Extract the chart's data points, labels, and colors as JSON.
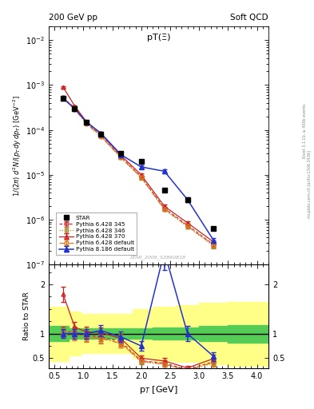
{
  "title_left": "200 GeV pp",
  "title_right": "Soft QCD",
  "plot_label": "pT(Ξ)",
  "watermark": "STAR_2006_S3860818",
  "ylabel_ratio": "Ratio to STAR",
  "xlabel": "p_T [GeV]",
  "right_label1": "Rivet 3.1.10, ≥ 400k events",
  "right_label2": "mcplots.cern.ch [arXiv:1306.3436]",
  "star_pt": [
    0.65,
    0.85,
    1.05,
    1.3,
    1.65,
    2.0,
    2.4,
    2.8,
    3.25
  ],
  "star_val": [
    0.0005,
    0.0003,
    0.00015,
    8e-05,
    3e-05,
    2e-05,
    4.5e-06,
    2.8e-06,
    6.5e-07
  ],
  "star_err": [
    4e-05,
    2.5e-05,
    1.2e-05,
    7e-06,
    2.5e-06,
    1.8e-06,
    5e-07,
    3e-07,
    8e-08
  ],
  "py345_pt": [
    0.65,
    0.85,
    1.05,
    1.3,
    1.65,
    2.0,
    2.4,
    2.8,
    3.25
  ],
  "py345_val": [
    0.00052,
    0.00031,
    0.000145,
    7.5e-05,
    2.5e-05,
    9e-06,
    1.8e-06,
    7.5e-07,
    2.8e-07
  ],
  "py345_err": [
    2e-05,
    1.5e-05,
    8e-06,
    4e-06,
    1.5e-06,
    6e-07,
    1.5e-07,
    7e-08,
    3e-08
  ],
  "py346_pt": [
    0.65,
    0.85,
    1.05,
    1.3,
    1.65,
    2.0,
    2.4,
    2.8,
    3.25
  ],
  "py346_val": [
    0.00051,
    0.0003,
    0.00014,
    7.3e-05,
    2.4e-05,
    8.5e-06,
    1.7e-06,
    7e-07,
    2.6e-07
  ],
  "py346_err": [
    2e-05,
    1.5e-05,
    8e-06,
    4e-06,
    1.5e-06,
    6e-07,
    1.5e-07,
    7e-08,
    3e-08
  ],
  "py370_pt": [
    0.65,
    0.85,
    1.05,
    1.3,
    1.65,
    2.0,
    2.4,
    2.8,
    3.25
  ],
  "py370_val": [
    0.0009,
    0.00034,
    0.000155,
    8.2e-05,
    2.7e-05,
    1e-05,
    2e-06,
    8.5e-07,
    3.2e-07
  ],
  "py370_err": [
    3e-05,
    1.5e-05,
    8e-06,
    4e-06,
    1.5e-06,
    7e-07,
    1.5e-07,
    7e-08,
    3e-08
  ],
  "pydef_pt": [
    0.65,
    0.85,
    1.05,
    1.3,
    1.65,
    2.0,
    2.4,
    2.8,
    3.25
  ],
  "pydef_val": [
    0.0005,
    0.00029,
    0.000138,
    7.2e-05,
    2.4e-05,
    8.8e-06,
    1.7e-06,
    7.2e-07,
    2.7e-07
  ],
  "pydef_err": [
    2e-05,
    1.5e-05,
    8e-06,
    4e-06,
    1.5e-06,
    6e-07,
    1.5e-07,
    7e-08,
    3e-08
  ],
  "py8_pt": [
    0.65,
    0.85,
    1.05,
    1.3,
    1.65,
    2.0,
    2.4,
    2.8,
    3.25
  ],
  "py8_val": [
    0.0005,
    0.0003,
    0.00015,
    8.5e-05,
    2.8e-05,
    1.5e-05,
    1.2e-05,
    2.8e-06,
    3.5e-07
  ],
  "py8_err": [
    2e-05,
    1.5e-05,
    8e-06,
    5e-06,
    2e-06,
    1.2e-06,
    1e-06,
    3e-07,
    4e-08
  ],
  "band_edges": [
    0.4,
    0.75,
    0.95,
    1.15,
    1.45,
    1.85,
    2.2,
    2.6,
    3.0,
    3.5,
    4.2
  ],
  "band_inner": [
    0.15,
    0.1,
    0.1,
    0.1,
    0.1,
    0.1,
    0.12,
    0.12,
    0.15,
    0.18
  ],
  "band_outer": [
    0.55,
    0.45,
    0.4,
    0.4,
    0.4,
    0.5,
    0.55,
    0.58,
    0.62,
    0.65
  ],
  "color_345": "#cc3333",
  "color_346": "#aa8833",
  "color_370": "#cc2222",
  "color_def": "#dd7722",
  "color_py8": "#2233cc",
  "ylim_main": [
    1e-07,
    0.02
  ],
  "xlim": [
    0.4,
    4.2
  ],
  "ylim_ratio": [
    0.3,
    2.4
  ]
}
